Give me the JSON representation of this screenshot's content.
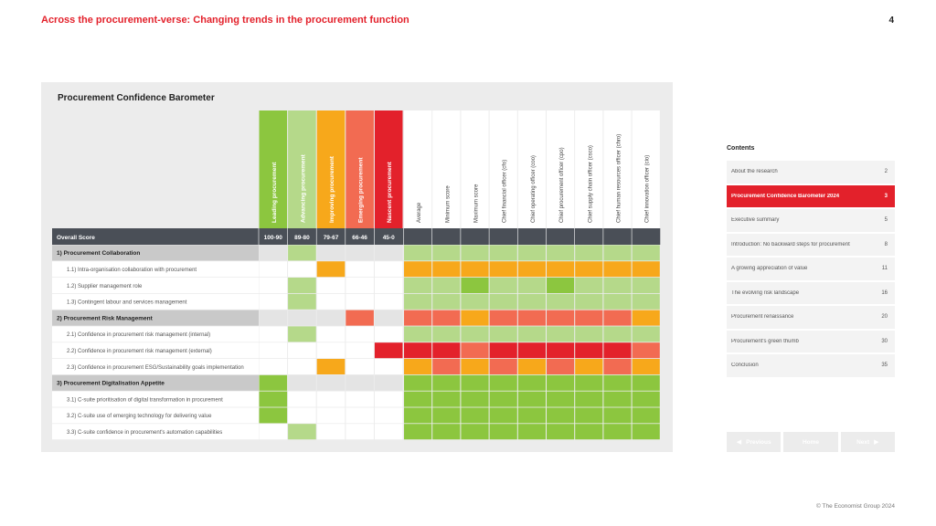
{
  "header": {
    "title": "Across the procurement-verse: Changing trends in the procurement function",
    "page_number": "4"
  },
  "panel": {
    "title": "Procurement Confidence Barometer"
  },
  "chart_data": {
    "type": "heatmap",
    "title": "Procurement Confidence Barometer",
    "legend": [
      {
        "label": "Leading procurement",
        "range": "100-90",
        "color": "#8cc63f"
      },
      {
        "label": "Advancing procurement",
        "range": "89-80",
        "color": "#b5d98a"
      },
      {
        "label": "Improving procurement",
        "range": "79-67",
        "color": "#f7a81b"
      },
      {
        "label": "Emerging procurement",
        "range": "66-46",
        "color": "#f26b52"
      },
      {
        "label": "Nascent procurement",
        "range": "45-0",
        "color": "#e3212b"
      }
    ],
    "columns": [
      "Average",
      "Minimum score",
      "Maximum score",
      "Chief financial officer (cfo)",
      "Chief operating officer (coo)",
      "Chief procurement officer (cpo)",
      "Chief supply chain officer (csco)",
      "Chief human resources officer (chro)",
      "Chief innovation officer (cio)"
    ],
    "overall_label": "Overall Score",
    "rows": [
      {
        "label": "1)  Procurement Collaboration",
        "section": true,
        "band": 1,
        "cells": [
          1,
          1,
          1,
          1,
          1,
          1,
          1,
          1,
          1
        ]
      },
      {
        "label": "1.1) Intra-organisation collaboration with procurement",
        "section": false,
        "band": 2,
        "cells": [
          2,
          2,
          2,
          2,
          2,
          2,
          2,
          2,
          2
        ]
      },
      {
        "label": "1.2) Supplier management role",
        "section": false,
        "band": 1,
        "cells": [
          1,
          1,
          0,
          1,
          1,
          0,
          1,
          1,
          1
        ]
      },
      {
        "label": "1.3) Contingent labour and services management",
        "section": false,
        "band": 1,
        "cells": [
          1,
          1,
          1,
          1,
          1,
          1,
          1,
          1,
          1
        ]
      },
      {
        "label": "2)  Procurement  Risk Management",
        "section": true,
        "band": 3,
        "cells": [
          3,
          3,
          2,
          3,
          3,
          3,
          3,
          3,
          2
        ]
      },
      {
        "label": "2.1) Confidence in procurement risk management (internal)",
        "section": false,
        "band": 1,
        "cells": [
          1,
          1,
          1,
          1,
          1,
          1,
          1,
          1,
          1
        ]
      },
      {
        "label": "2.2) Confidence in procurement risk management (external)",
        "section": false,
        "band": 4,
        "cells": [
          4,
          4,
          3,
          4,
          4,
          4,
          4,
          4,
          3
        ]
      },
      {
        "label": "2.3) Confidence in procurement ESG/Sustainability goals implementation",
        "section": false,
        "band": 2,
        "cells": [
          2,
          3,
          2,
          3,
          2,
          3,
          2,
          3,
          2
        ]
      },
      {
        "label": "3)  Procurement Digitalisation Appetite",
        "section": true,
        "band": 0,
        "cells": [
          0,
          0,
          0,
          0,
          0,
          0,
          0,
          0,
          0
        ]
      },
      {
        "label": "3.1) C-suite prioritisation of digital transformation in procurement",
        "section": false,
        "band": 0,
        "cells": [
          0,
          0,
          0,
          0,
          0,
          0,
          0,
          0,
          0
        ]
      },
      {
        "label": "3.2) C-suite use of emerging technology for delivering value",
        "section": false,
        "band": 0,
        "cells": [
          0,
          0,
          0,
          0,
          0,
          0,
          0,
          0,
          0
        ]
      },
      {
        "label": "3.3) C-suite confidence in procurement's automation capabilities",
        "section": false,
        "band": 1,
        "cells": [
          0,
          0,
          0,
          0,
          0,
          0,
          0,
          0,
          0
        ]
      }
    ]
  },
  "contents": {
    "heading": "Contents",
    "items": [
      {
        "label": "About the research",
        "page": "2",
        "active": false
      },
      {
        "label": "Procurement Confidence Barometer 2024",
        "page": "3",
        "active": true
      },
      {
        "label": "Executive summary",
        "page": "5",
        "active": false
      },
      {
        "label": "Introduction: No backward steps for procurement",
        "page": "8",
        "active": false
      },
      {
        "label": "A growing appreciation of value",
        "page": "11",
        "active": false
      },
      {
        "label": "The evolving risk landscape",
        "page": "16",
        "active": false
      },
      {
        "label": "Procurement renaissance",
        "page": "20",
        "active": false
      },
      {
        "label": "Procurement's green thumb",
        "page": "30",
        "active": false
      },
      {
        "label": "Conclusion",
        "page": "35",
        "active": false
      }
    ]
  },
  "nav": {
    "previous": "Previous",
    "home": "Home",
    "next": "Next"
  },
  "footer": {
    "copyright": "© The Economist Group 2024"
  }
}
